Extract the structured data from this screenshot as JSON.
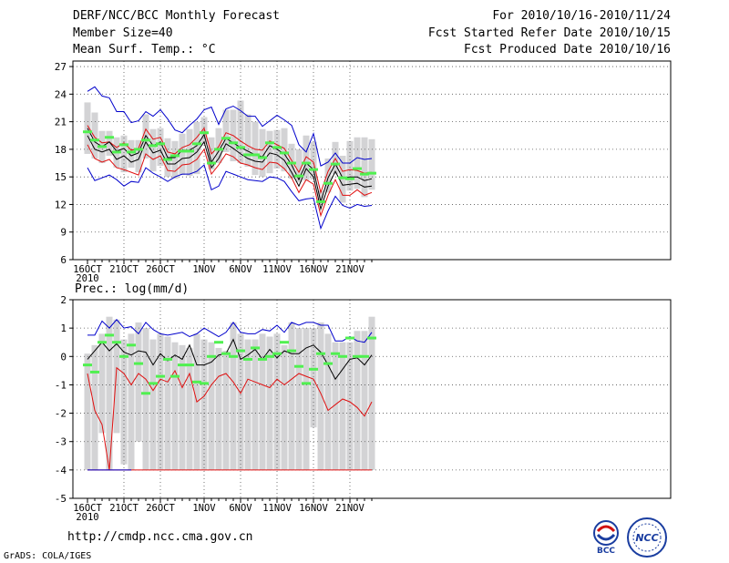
{
  "header": {
    "title": "DERF/NCC/BCC Monthly Forecast",
    "member_size": "Member Size=40",
    "variable": "Mean Surf. Temp.: °C",
    "period": "For 2010/10/16-2010/11/24",
    "fcst_started": "Fcst Started Refer Date 2010/10/15",
    "fcst_produced": "Fcst Produced Date 2010/10/16"
  },
  "footer": {
    "url": "http://cmdp.ncc.cma.gov.cn",
    "credit": "GrADS: COLA/IGES",
    "logo_bcc": "BCC",
    "logo_ncc": "NCC"
  },
  "colors": {
    "box": "#d3d3d5",
    "median": "#50f050",
    "mean": "#000000",
    "std": "#e01010",
    "envelope": "#0000cc"
  },
  "chart_data": [
    {
      "type": "line",
      "name": "temperature",
      "ylabel": "Mean Surf. Temp.: °C",
      "ylim": [
        6,
        27.6
      ],
      "yticks": [
        6,
        9,
        12,
        15,
        18,
        21,
        24,
        27
      ],
      "xticks": [
        {
          "day": 0,
          "label": "16OCT",
          "sub": "2010"
        },
        {
          "day": 5,
          "label": "21OCT"
        },
        {
          "day": 10,
          "label": "26OCT"
        },
        {
          "day": 16,
          "label": "1NOV"
        },
        {
          "day": 21,
          "label": "6NOV"
        },
        {
          "day": 26,
          "label": "11NOV"
        },
        {
          "day": 31,
          "label": "16NOV"
        },
        {
          "day": 36,
          "label": "21NOV"
        }
      ],
      "days": 40,
      "series": {
        "max": [
          24.3,
          24.8,
          23.8,
          23.6,
          22.1,
          22.1,
          20.9,
          21.1,
          22.1,
          21.6,
          22.3,
          21.3,
          20.1,
          19.8,
          20.6,
          21.3,
          22.3,
          22.6,
          20.7,
          22.4,
          22.7,
          22.2,
          21.6,
          21.6,
          20.5,
          21.1,
          21.7,
          21.2,
          20.6,
          18.5,
          17.7,
          19.7,
          16.2,
          16.6,
          17.6,
          16.5,
          16.5,
          17.1,
          16.9,
          17.0
        ],
        "upper": [
          20.6,
          19.3,
          18.7,
          18.8,
          18.2,
          18.7,
          17.9,
          18.1,
          20.2,
          19.1,
          19.3,
          17.7,
          17.5,
          18.2,
          18.5,
          19.3,
          20.3,
          17.5,
          18.3,
          19.8,
          19.5,
          18.9,
          18.4,
          18.0,
          17.9,
          18.9,
          18.5,
          18.1,
          16.8,
          15.5,
          17.2,
          16.6,
          13.3,
          15.6,
          17.0,
          15.6,
          15.8,
          15.7,
          15.4,
          15.5
        ],
        "mean": [
          20.3,
          18.8,
          18.3,
          18.8,
          17.8,
          18.1,
          17.3,
          17.6,
          19.5,
          18.4,
          18.8,
          17.1,
          17.1,
          17.9,
          17.9,
          18.4,
          19.6,
          16.6,
          17.8,
          19.2,
          18.7,
          18.2,
          17.8,
          17.4,
          17.2,
          18.4,
          18.0,
          17.5,
          16.3,
          14.7,
          16.5,
          15.8,
          12.3,
          14.9,
          16.4,
          14.9,
          15.0,
          15.0,
          14.6,
          14.8
        ],
        "lower": [
          19.5,
          18.0,
          17.7,
          18.0,
          16.9,
          17.3,
          16.6,
          16.9,
          18.8,
          17.6,
          17.9,
          16.4,
          16.4,
          17.0,
          17.1,
          17.7,
          18.8,
          16.0,
          17.0,
          18.6,
          18.1,
          17.5,
          17.0,
          16.7,
          16.6,
          17.6,
          17.4,
          16.8,
          15.5,
          14.0,
          15.9,
          15.0,
          11.5,
          14.0,
          15.6,
          14.1,
          14.2,
          14.3,
          13.9,
          14.0
        ],
        "min": [
          18.5,
          17.0,
          16.6,
          16.9,
          16.0,
          15.8,
          15.5,
          15.2,
          17.5,
          16.9,
          17.3,
          15.7,
          15.6,
          16.3,
          16.4,
          16.9,
          18.0,
          15.3,
          16.3,
          17.5,
          17.2,
          16.5,
          16.3,
          16.0,
          15.8,
          16.6,
          16.5,
          15.9,
          14.9,
          13.3,
          14.7,
          14.2,
          10.8,
          13.0,
          14.7,
          13.0,
          13.0,
          13.6,
          13.0,
          13.3
        ],
        "min_env": [
          16.0,
          14.6,
          14.9,
          15.2,
          14.7,
          14.0,
          14.5,
          14.4,
          16.0,
          15.4,
          15.0,
          14.5,
          15.0,
          15.3,
          15.3,
          15.6,
          16.3,
          13.6,
          14.0,
          15.6,
          15.3,
          15.0,
          14.7,
          14.6,
          14.5,
          15.0,
          14.9,
          14.5,
          13.4,
          12.4,
          12.6,
          12.7,
          9.4,
          11.3,
          12.9,
          11.9,
          11.6,
          12.0,
          11.8,
          11.9
        ],
        "box_low": [
          17.5,
          17.0,
          16.5,
          17.3,
          16.0,
          15.5,
          16.0,
          15.5,
          17.0,
          15.6,
          16.2,
          15.0,
          14.8,
          15.2,
          15.1,
          15.3,
          18.6,
          15.8,
          16.5,
          17.7,
          16.7,
          16.5,
          16.1,
          15.2,
          15.0,
          15.4,
          15.9,
          15.6,
          14.8,
          14.4,
          14.6,
          14.7,
          12.0,
          13.3,
          15.3,
          12.2,
          13.5,
          13.7,
          12.8,
          13.6
        ],
        "box_high": [
          23.1,
          22.0,
          20.0,
          20.0,
          19.3,
          19.5,
          19.0,
          19.0,
          21.8,
          20.2,
          20.3,
          19.2,
          18.9,
          19.7,
          20.2,
          21.0,
          21.5,
          19.3,
          20.3,
          22.3,
          22.3,
          23.3,
          21.8,
          21.0,
          20.2,
          20.0,
          20.1,
          20.3,
          18.6,
          18.0,
          19.5,
          18.8,
          13.5,
          17.0,
          18.8,
          17.3,
          18.9,
          19.3,
          19.3,
          19.1
        ],
        "median": [
          19.9,
          19.0,
          18.3,
          19.3,
          17.7,
          18.5,
          17.7,
          18.0,
          19.0,
          18.4,
          18.6,
          16.9,
          17.3,
          17.8,
          17.8,
          18.6,
          19.8,
          16.5,
          18.0,
          19.2,
          18.7,
          18.2,
          17.4,
          17.4,
          17.1,
          18.7,
          18.2,
          17.6,
          16.5,
          15.1,
          16.5,
          15.8,
          12.3,
          14.3,
          16.4,
          14.9,
          14.8,
          15.9,
          15.3,
          15.4
        ]
      }
    },
    {
      "type": "line",
      "name": "precipitation",
      "ylabel": "Prec.: log(mm/d)",
      "ylim": [
        -5,
        2
      ],
      "yticks": [
        -5,
        -4,
        -3,
        -2,
        -1,
        0,
        1,
        2
      ],
      "xticks": [
        {
          "day": 0,
          "label": "16OCT",
          "sub": "2010"
        },
        {
          "day": 5,
          "label": "21OCT"
        },
        {
          "day": 10,
          "label": "26OCT"
        },
        {
          "day": 16,
          "label": "1NOV"
        },
        {
          "day": 21,
          "label": "6NOV"
        },
        {
          "day": 26,
          "label": "11NOV"
        },
        {
          "day": 31,
          "label": "16NOV"
        },
        {
          "day": 36,
          "label": "21NOV"
        }
      ],
      "days": 40,
      "series": {
        "max": [
          0.75,
          0.75,
          1.25,
          1.0,
          1.3,
          1.0,
          1.05,
          0.8,
          1.2,
          0.95,
          0.8,
          0.75,
          0.8,
          0.85,
          0.7,
          0.8,
          1.0,
          0.85,
          0.7,
          0.85,
          1.2,
          0.85,
          0.8,
          0.8,
          0.95,
          0.9,
          1.1,
          0.85,
          1.2,
          1.1,
          1.2,
          1.2,
          1.1,
          1.1,
          0.55,
          0.55,
          0.7,
          0.55,
          0.5,
          0.85
        ],
        "mean": [
          -0.1,
          0.2,
          0.5,
          0.2,
          0.45,
          0.15,
          0.05,
          0.2,
          0.15,
          -0.3,
          0.1,
          -0.15,
          0.05,
          -0.1,
          0.4,
          -0.3,
          -0.3,
          -0.2,
          0.05,
          0.1,
          0.6,
          -0.1,
          0.05,
          0.25,
          -0.1,
          0.25,
          -0.05,
          0.2,
          0.1,
          0.1,
          0.3,
          0.4,
          0.15,
          -0.3,
          -0.8,
          -0.45,
          -0.1,
          -0.05,
          -0.3,
          0.05
        ],
        "min": [
          -0.65,
          -1.9,
          -2.4,
          -4.0,
          -4.0,
          -4.0,
          -4.0,
          -4.0,
          -4.0,
          -4.0,
          -4.0,
          -4.0,
          -4.0,
          -4.0,
          -4.0,
          -4.0,
          -4.0,
          -4.0,
          -4.0,
          -4.0,
          -4.0,
          -4.0,
          -4.0,
          -4.0,
          -4.0,
          -4.0,
          -4.0,
          -4.0,
          -4.0,
          -4.0,
          -4.0,
          -4.0,
          -4.0,
          -4.0,
          -4.0,
          -4.0,
          -4.0,
          -4.0,
          -4.0,
          -4.0
        ],
        "std_low": [
          -0.6,
          -1.9,
          -2.4,
          -4.0,
          -0.4,
          -0.6,
          -1.0,
          -0.6,
          -0.8,
          -1.2,
          -0.8,
          -0.9,
          -0.5,
          -1.1,
          -0.6,
          -1.6,
          -1.4,
          -1.0,
          -0.7,
          -0.6,
          -0.9,
          -1.3,
          -0.8,
          -0.9,
          -1.0,
          -1.1,
          -0.8,
          -1.0,
          -0.8,
          -0.6,
          -0.7,
          -0.8,
          -1.3,
          -1.9,
          -1.7,
          -1.5,
          -1.6,
          -1.8,
          -2.1,
          -1.6
        ],
        "box_low": [
          -4.0,
          -4.0,
          -2.7,
          -4.0,
          -2.7,
          -3.8,
          -4.0,
          -3.0,
          -4.0,
          -4.0,
          -4.0,
          -4.0,
          -4.0,
          -4.0,
          -4.0,
          -4.0,
          -4.0,
          -4.0,
          -4.0,
          -4.0,
          -4.0,
          -4.0,
          -4.0,
          -4.0,
          -4.0,
          -4.0,
          -4.0,
          -4.0,
          -4.0,
          -4.0,
          -4.0,
          -2.5,
          -4.0,
          -4.0,
          -4.0,
          -4.0,
          -4.0,
          -4.0,
          -4.0,
          -4.0
        ],
        "box_high": [
          0.1,
          0.4,
          0.8,
          1.4,
          1.3,
          0.6,
          0.8,
          1.2,
          1.0,
          0.6,
          0.8,
          0.7,
          0.5,
          0.4,
          0.3,
          0.8,
          0.6,
          0.5,
          0.3,
          0.2,
          1.2,
          0.8,
          0.6,
          0.6,
          0.8,
          0.7,
          0.8,
          0.4,
          1.2,
          1.0,
          1.0,
          1.0,
          1.2,
          0.8,
          0.5,
          0.5,
          0.5,
          0.9,
          0.9,
          1.4
        ],
        "median": [
          -0.3,
          -0.55,
          0.5,
          0.75,
          0.5,
          0.0,
          0.4,
          -0.25,
          -1.3,
          -0.95,
          -0.7,
          -0.1,
          -0.7,
          -0.3,
          -0.3,
          -0.9,
          -0.95,
          0.0,
          0.5,
          0.1,
          0.0,
          0.2,
          -0.1,
          0.3,
          -0.1,
          0.0,
          0.1,
          0.5,
          0.2,
          -0.35,
          -0.95,
          -0.45,
          0.1,
          -0.25,
          0.1,
          0.0,
          0.65,
          0.0,
          0.0,
          0.65
        ]
      }
    }
  ]
}
